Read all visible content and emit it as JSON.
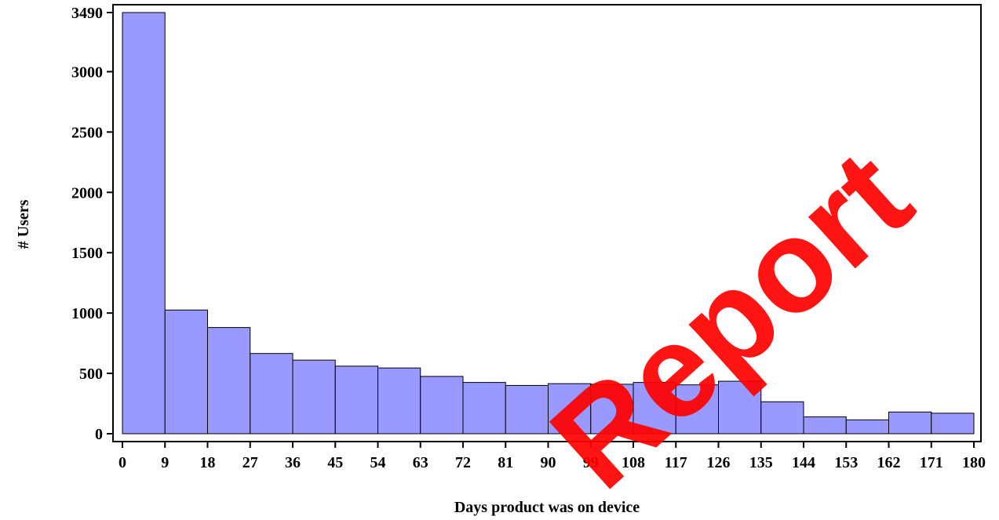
{
  "chart_data": {
    "type": "bar",
    "xlabel": "Days product was on device",
    "ylabel": "# Users",
    "x_ticks": [
      0,
      9,
      18,
      27,
      36,
      45,
      54,
      63,
      72,
      81,
      90,
      99,
      108,
      117,
      126,
      135,
      144,
      153,
      162,
      171,
      180
    ],
    "y_ticks": [
      0,
      500,
      1000,
      1500,
      2000,
      2500,
      3000,
      3490
    ],
    "xlim": [
      0,
      180
    ],
    "ylim": [
      0,
      3490
    ],
    "bin_width": 9,
    "bins": [
      {
        "start": 0,
        "end": 9,
        "value": 3490
      },
      {
        "start": 9,
        "end": 18,
        "value": 1025
      },
      {
        "start": 18,
        "end": 27,
        "value": 880
      },
      {
        "start": 27,
        "end": 36,
        "value": 665
      },
      {
        "start": 36,
        "end": 45,
        "value": 610
      },
      {
        "start": 45,
        "end": 54,
        "value": 560
      },
      {
        "start": 54,
        "end": 63,
        "value": 545
      },
      {
        "start": 63,
        "end": 72,
        "value": 475
      },
      {
        "start": 72,
        "end": 81,
        "value": 425
      },
      {
        "start": 81,
        "end": 90,
        "value": 400
      },
      {
        "start": 90,
        "end": 99,
        "value": 415
      },
      {
        "start": 99,
        "end": 108,
        "value": 410
      },
      {
        "start": 108,
        "end": 117,
        "value": 425
      },
      {
        "start": 117,
        "end": 126,
        "value": 405
      },
      {
        "start": 126,
        "end": 135,
        "value": 435
      },
      {
        "start": 135,
        "end": 144,
        "value": 265
      },
      {
        "start": 144,
        "end": 153,
        "value": 140
      },
      {
        "start": 153,
        "end": 162,
        "value": 115
      },
      {
        "start": 162,
        "end": 171,
        "value": 180
      },
      {
        "start": 171,
        "end": 180,
        "value": 170
      }
    ],
    "bar_color": "#9999ff",
    "bar_edge_color": "#000000",
    "grid": false,
    "legend": "none"
  },
  "watermark": {
    "text": "Report",
    "color": "#ff0000"
  }
}
